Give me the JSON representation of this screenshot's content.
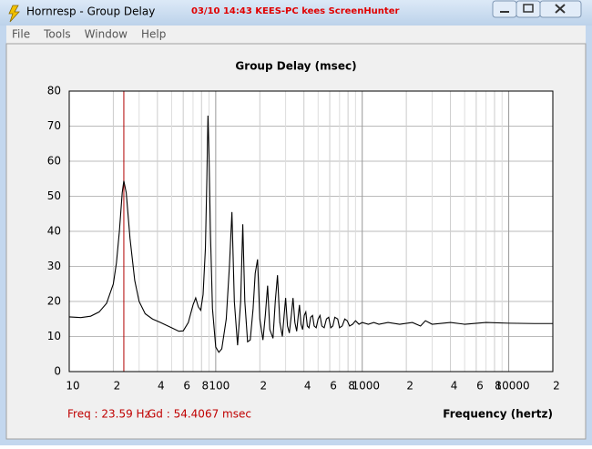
{
  "window": {
    "title": "Hornresp - Group Delay",
    "watermark": "03/10  14:43  KEES-PC  kees  ScreenHunter"
  },
  "menu": {
    "items": [
      "File",
      "Tools",
      "Window",
      "Help"
    ]
  },
  "status": {
    "freq": "Freq : 23.59 Hz",
    "gd": "Gd : 54.4067 msec"
  },
  "chart_data": {
    "type": "line",
    "title": "Group Delay (msec)",
    "x_label": "Frequency (hertz)",
    "xscale": "log",
    "grid": true,
    "color": "#000000",
    "cursor_color": "#b00000",
    "cursor_x": 23.59,
    "xlim": [
      10,
      20000
    ],
    "ylim": [
      0,
      80
    ],
    "yticks": [
      0,
      10,
      20,
      30,
      40,
      50,
      60,
      70,
      80
    ],
    "xticks": [
      10,
      {
        "value": 20,
        "label": "2"
      },
      {
        "value": 40,
        "label": "4"
      },
      {
        "value": 60,
        "label": "6"
      },
      {
        "value": 80,
        "label": "8"
      },
      100,
      {
        "value": 200,
        "label": "2"
      },
      {
        "value": 400,
        "label": "4"
      },
      {
        "value": 600,
        "label": "6"
      },
      {
        "value": 800,
        "label": "8"
      },
      1000,
      {
        "value": 2000,
        "label": "2"
      },
      {
        "value": 4000,
        "label": "4"
      },
      {
        "value": 6000,
        "label": "6"
      },
      {
        "value": 8000,
        "label": "8"
      },
      10000,
      {
        "value": 20000,
        "label": "2"
      }
    ],
    "x_minor_ticks": [
      30,
      50,
      70,
      90,
      300,
      500,
      700,
      900,
      3000,
      5000,
      7000,
      9000
    ],
    "x": [
      10,
      12,
      14,
      16,
      18,
      20,
      21,
      22,
      23,
      23.59,
      24.5,
      26,
      28,
      30,
      33,
      37,
      42,
      50,
      56,
      60,
      65,
      70,
      73,
      76,
      79,
      82,
      85,
      87,
      88.5,
      90,
      92,
      95,
      100,
      105,
      110,
      118,
      124,
      129,
      134,
      141,
      148,
      153,
      158,
      165,
      172,
      180,
      186,
      193,
      200,
      210,
      218,
      226,
      234,
      246,
      255,
      264,
      274,
      285,
      293,
      300,
      309,
      318,
      328,
      337,
      347,
      357,
      366,
      373,
      382,
      392,
      402,
      412,
      422,
      433,
      445,
      458,
      470,
      485,
      500,
      515,
      530,
      550,
      570,
      590,
      610,
      630,
      650,
      680,
      700,
      730,
      760,
      790,
      820,
      860,
      900,
      950,
      1000,
      1100,
      1200,
      1300,
      1500,
      1800,
      2200,
      2500,
      2700,
      3000,
      4000,
      5000,
      7000,
      10000,
      15000,
      20000
    ],
    "values": [
      15.6,
      15.4,
      15.8,
      17,
      19.5,
      25,
      31,
      40,
      51,
      54.4,
      51,
      38,
      26,
      20,
      16.5,
      15,
      14,
      12.5,
      11.5,
      11.6,
      14,
      19,
      21,
      18.5,
      17.5,
      22,
      35,
      55,
      73,
      62,
      40,
      18,
      7,
      5.5,
      6.5,
      15,
      30,
      45.5,
      20,
      7.5,
      20,
      42,
      20,
      8.5,
      9,
      18,
      28,
      32,
      15,
      9,
      16,
      24.5,
      12,
      9.5,
      20,
      27.5,
      14,
      10,
      16,
      21,
      13,
      11,
      16,
      21,
      14,
      11.5,
      16,
      19,
      13.5,
      12,
      16,
      17,
      13,
      12.5,
      15.5,
      16,
      13,
      12.5,
      15,
      16,
      13,
      12.5,
      15,
      15.5,
      12.5,
      13,
      15.5,
      15,
      12.5,
      13,
      15,
      14.5,
      13,
      13.5,
      14.5,
      13.5,
      14,
      13.5,
      14,
      13.5,
      14,
      13.5,
      14,
      13,
      14.5,
      13.5,
      14,
      13.5,
      14,
      13.8,
      13.7,
      13.7
    ]
  }
}
